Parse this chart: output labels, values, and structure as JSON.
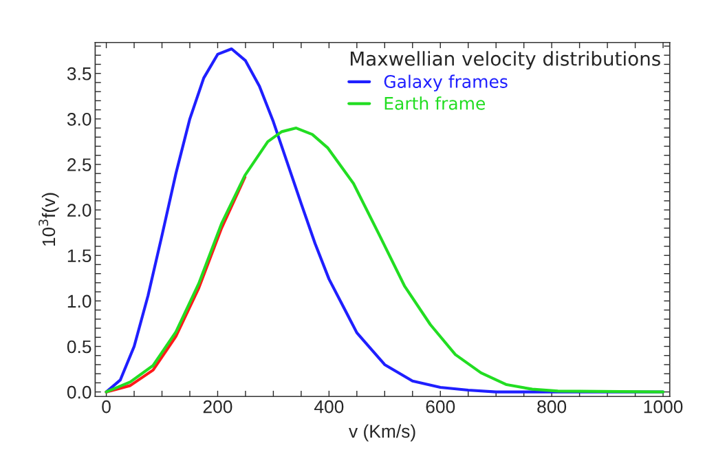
{
  "chart_data": {
    "type": "line",
    "xlabel": "v (Km/s)",
    "ylabel": "10$^{3}$f(v)",
    "legend_title": "Maxwellian velocity distributions",
    "series": [
      {
        "name": "Galaxy frames",
        "color": "#1f1fff",
        "x": [
          0,
          25,
          50,
          75,
          100,
          125,
          150,
          175,
          200,
          225,
          250,
          275,
          300,
          325,
          350,
          375,
          400,
          450,
          500,
          550,
          600,
          650,
          700,
          800,
          1000
        ],
        "values": [
          0,
          0.13,
          0.5,
          1.06,
          1.72,
          2.4,
          3.0,
          3.45,
          3.71,
          3.77,
          3.64,
          3.36,
          2.97,
          2.52,
          2.07,
          1.63,
          1.24,
          0.65,
          0.3,
          0.12,
          0.05,
          0.02,
          0,
          0,
          0
        ]
      },
      {
        "color": "#ff1a1a",
        "x": [
          0,
          43,
          84,
          125,
          166,
          207,
          249
        ],
        "values": [
          0,
          0.07,
          0.24,
          0.61,
          1.14,
          1.8,
          2.36
        ]
      },
      {
        "name": "Earth frame",
        "color": "#22dd22",
        "x": [
          0,
          43,
          84,
          125,
          166,
          207,
          249,
          290,
          315,
          341,
          370,
          398,
          444,
          490,
          536,
          582,
          627,
          673,
          719,
          765,
          811,
          1000
        ],
        "values": [
          0,
          0.11,
          0.29,
          0.66,
          1.19,
          1.85,
          2.38,
          2.75,
          2.86,
          2.9,
          2.83,
          2.68,
          2.29,
          1.73,
          1.16,
          0.74,
          0.41,
          0.21,
          0.08,
          0.03,
          0.01,
          0
        ]
      }
    ],
    "xlim": [
      -20,
      1012
    ],
    "ylim": [
      -0.05,
      3.84
    ],
    "xticks": [
      0,
      {
        "value": 50,
        "label": null
      },
      {
        "value": 100,
        "label": null
      },
      {
        "value": 150,
        "label": null
      },
      200,
      {
        "value": 250,
        "label": null
      },
      {
        "value": 300,
        "label": null
      },
      {
        "value": 350,
        "label": null
      },
      400,
      {
        "value": 450,
        "label": null
      },
      {
        "value": 500,
        "label": null
      },
      {
        "value": 550,
        "label": null
      },
      600,
      {
        "value": 650,
        "label": null
      },
      {
        "value": 700,
        "label": null
      },
      {
        "value": 750,
        "label": null
      },
      800,
      {
        "value": 850,
        "label": null
      },
      {
        "value": 900,
        "label": null
      },
      {
        "value": 950,
        "label": null
      },
      1000
    ],
    "yticks": [
      {
        "value": 0,
        "label": "0.0"
      },
      {
        "value": 0.1,
        "label": null
      },
      {
        "value": 0.2,
        "label": null
      },
      {
        "value": 0.3,
        "label": null
      },
      {
        "value": 0.4,
        "label": null
      },
      0.5,
      {
        "value": 0.6,
        "label": null
      },
      {
        "value": 0.7,
        "label": null
      },
      {
        "value": 0.8,
        "label": null
      },
      {
        "value": 0.9,
        "label": null
      },
      {
        "value": 1,
        "label": "1.0"
      },
      {
        "value": 1.1,
        "label": null
      },
      {
        "value": 1.2,
        "label": null
      },
      {
        "value": 1.3,
        "label": null
      },
      {
        "value": 1.4,
        "label": null
      },
      1.5,
      {
        "value": 1.6,
        "label": null
      },
      {
        "value": 1.7,
        "label": null
      },
      {
        "value": 1.8,
        "label": null
      },
      {
        "value": 1.9,
        "label": null
      },
      {
        "value": 2,
        "label": "2.0"
      },
      {
        "value": 2.1,
        "label": null
      },
      {
        "value": 2.2,
        "label": null
      },
      {
        "value": 2.3,
        "label": null
      },
      {
        "value": 2.4,
        "label": null
      },
      2.5,
      {
        "value": 2.6,
        "label": null
      },
      {
        "value": 2.7,
        "label": null
      },
      {
        "value": 2.8,
        "label": null
      },
      {
        "value": 2.9,
        "label": null
      },
      {
        "value": 3,
        "label": "3.0"
      },
      {
        "value": 3.1,
        "label": null
      },
      {
        "value": 3.2,
        "label": null
      },
      {
        "value": 3.3,
        "label": null
      },
      {
        "value": 3.4,
        "label": null
      },
      3.5,
      {
        "value": 3.6,
        "label": null
      },
      {
        "value": 3.7,
        "label": null
      },
      {
        "value": 3.8,
        "label": null
      }
    ],
    "grid": false,
    "legend": "top right",
    "marker": "none",
    "line_style": "solid"
  }
}
